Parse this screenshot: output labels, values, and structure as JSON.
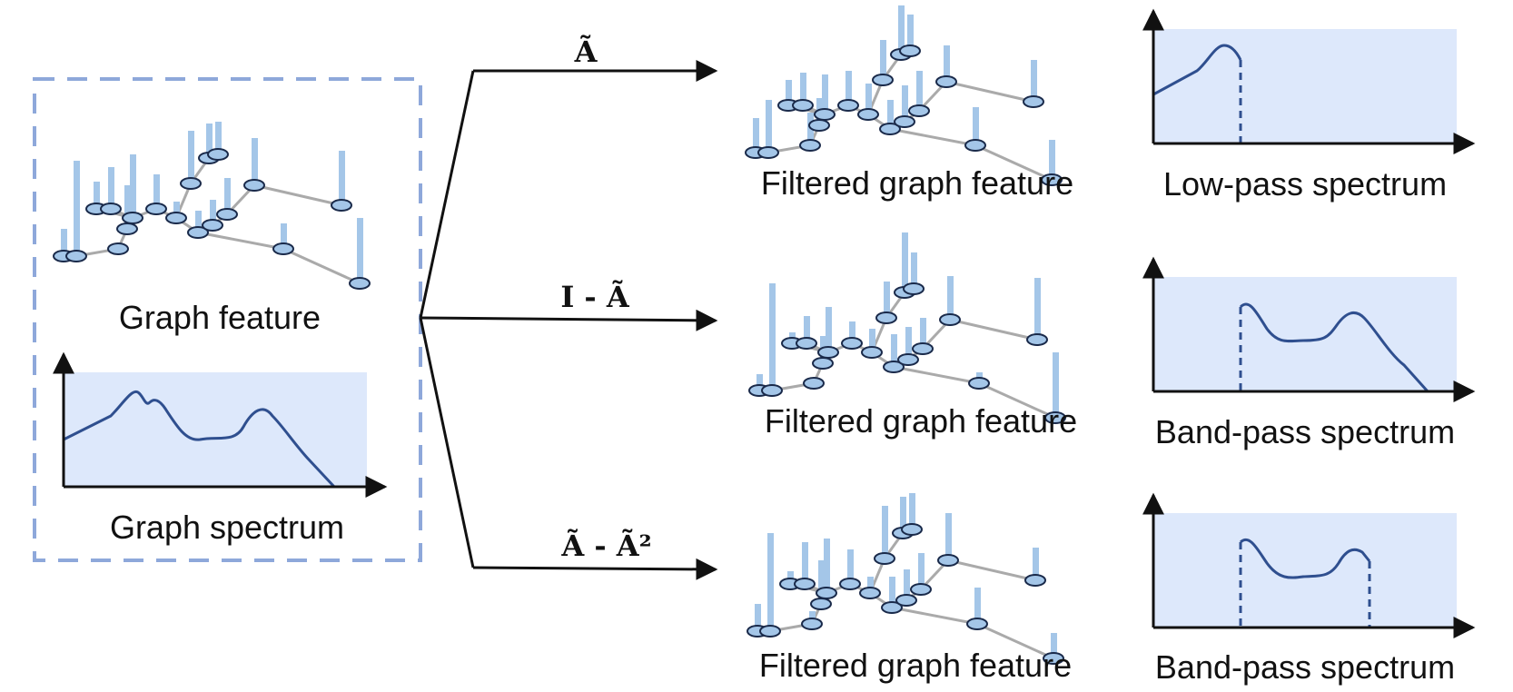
{
  "input": {
    "graph_label": "Graph feature",
    "spectrum_label": "Graph spectrum"
  },
  "branches": [
    {
      "operator": "Ã",
      "feature_label": "Filtered graph feature",
      "spectrum_label": "Low-pass spectrum"
    },
    {
      "operator": "I - Ã",
      "feature_label": "Filtered graph feature",
      "spectrum_label": "Band-pass spectrum"
    },
    {
      "operator": "Ã - Ã²",
      "feature_label": "Filtered graph feature",
      "spectrum_label": "Band-pass spectrum"
    }
  ],
  "colors": {
    "bar": "#a4c6e8",
    "node": "#a4c6e8",
    "node_stroke": "#1a2a4a",
    "edge": "#aaaaaa",
    "spectrum_bg": "#dde8fb",
    "curve": "#2f4f8f",
    "dashed_box": "#8ea8da",
    "axis": "#111111"
  }
}
